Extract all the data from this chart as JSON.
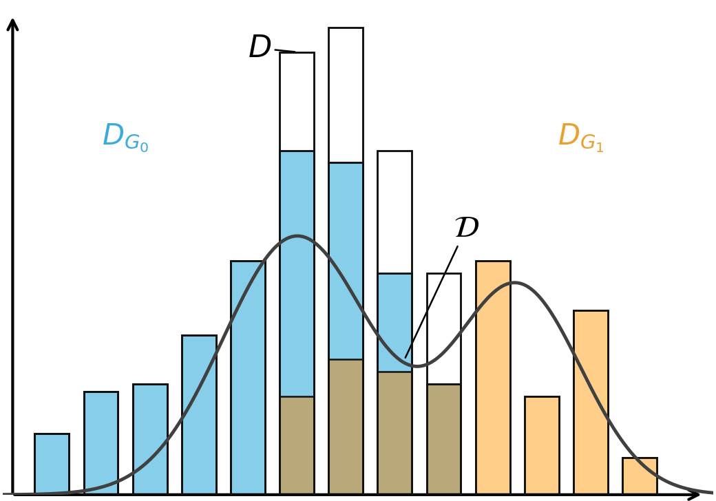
{
  "bar_centers": [
    1,
    2,
    3,
    4,
    5,
    6,
    7,
    8,
    9,
    10,
    11,
    12,
    13
  ],
  "g0_heights": [
    2.5,
    4.2,
    4.5,
    6.5,
    9.5,
    14.0,
    13.5,
    9.0,
    4.5,
    0.0,
    0.0,
    0.0,
    0.0
  ],
  "g1_heights": [
    0.0,
    0.0,
    0.0,
    0.0,
    0.0,
    4.0,
    5.5,
    5.0,
    4.5,
    9.5,
    4.0,
    7.5,
    1.5
  ],
  "bar_width": 0.7,
  "g0_color": "#87CEEB",
  "g1_color": "#FFCF8A",
  "overlap_color": "#B8A87A",
  "outline_color": "#111111",
  "curve_color": "#404040",
  "curve_linewidth": 3.5,
  "background_color": "#ffffff",
  "ylim": [
    0,
    20
  ],
  "xlim": [
    0.0,
    14.5
  ],
  "figsize": [
    10.4,
    7.28
  ],
  "dpi": 100,
  "mu1": 6.0,
  "sig1": 1.5,
  "amp1": 10.5,
  "mu2": 10.5,
  "sig2": 1.3,
  "amp2": 8.5
}
